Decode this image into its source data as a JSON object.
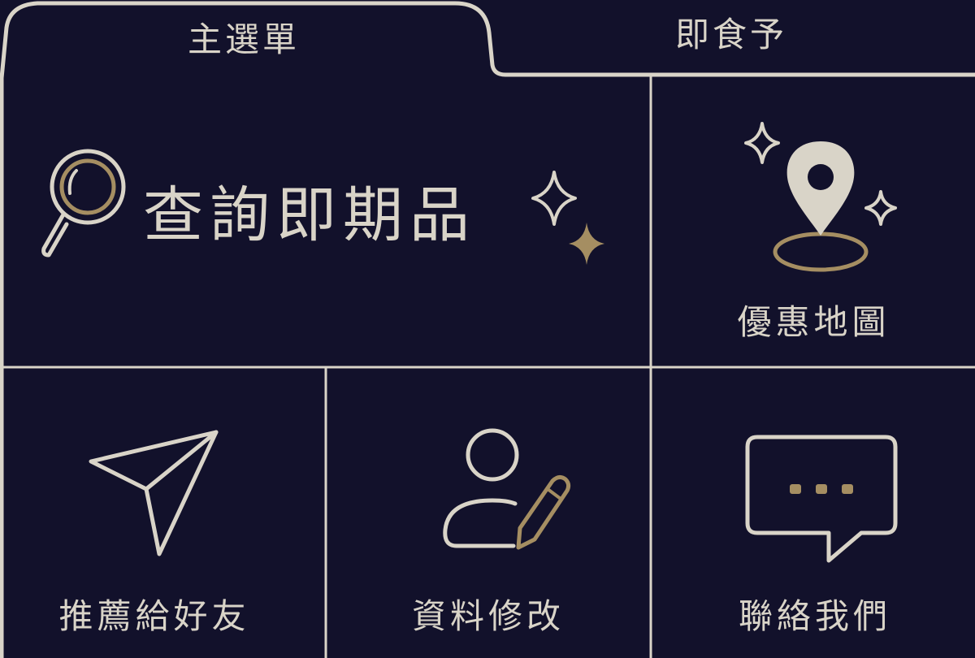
{
  "tabs": {
    "main_label": "主選單",
    "brand_label": "即食予"
  },
  "tiles": {
    "search_label": "查詢即期品",
    "map_label": "優惠地圖",
    "recommend_label": "推薦給好友",
    "profile_label": "資料修改",
    "contact_label": "聯絡我們"
  },
  "icons": {
    "search": "magnifier-icon",
    "sparkles": "sparkle-icon",
    "map": "location-pin-icon",
    "recommend": "paper-plane-icon",
    "profile": "user-edit-icon",
    "contact": "chat-bubble-icon"
  },
  "colors": {
    "background": "#12112b",
    "line": "#d9d4c8",
    "accent_gold": "#a58e62"
  }
}
